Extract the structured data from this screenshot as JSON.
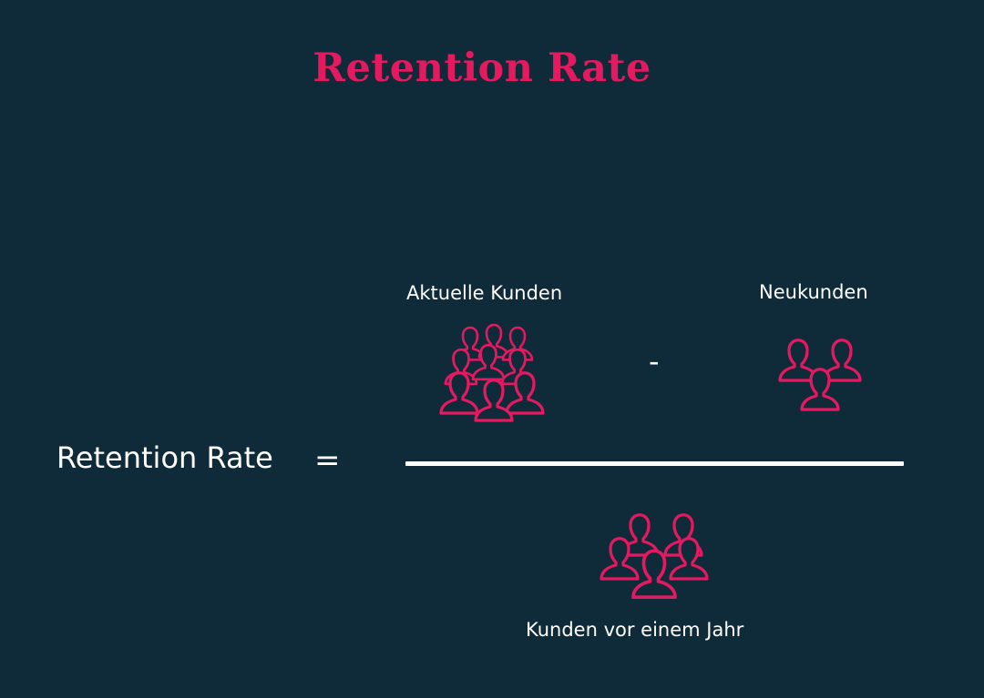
{
  "title": "Retention Rate",
  "lhs_label": "Retention Rate",
  "equals_symbol": "=",
  "minus_symbol": "-",
  "numerator": {
    "current_customers": {
      "label": "Aktuelle Kunden",
      "icon": "large-crowd-icon"
    },
    "new_customers": {
      "label": "Neukunden",
      "icon": "three-people-icon"
    }
  },
  "denominator": {
    "customers_year_ago": {
      "label": "Kunden vor einem Jahr",
      "icon": "people-group-icon"
    }
  },
  "colors": {
    "background": "#0f2b3a",
    "accent": "#e5195f",
    "text": "#ffffff"
  }
}
